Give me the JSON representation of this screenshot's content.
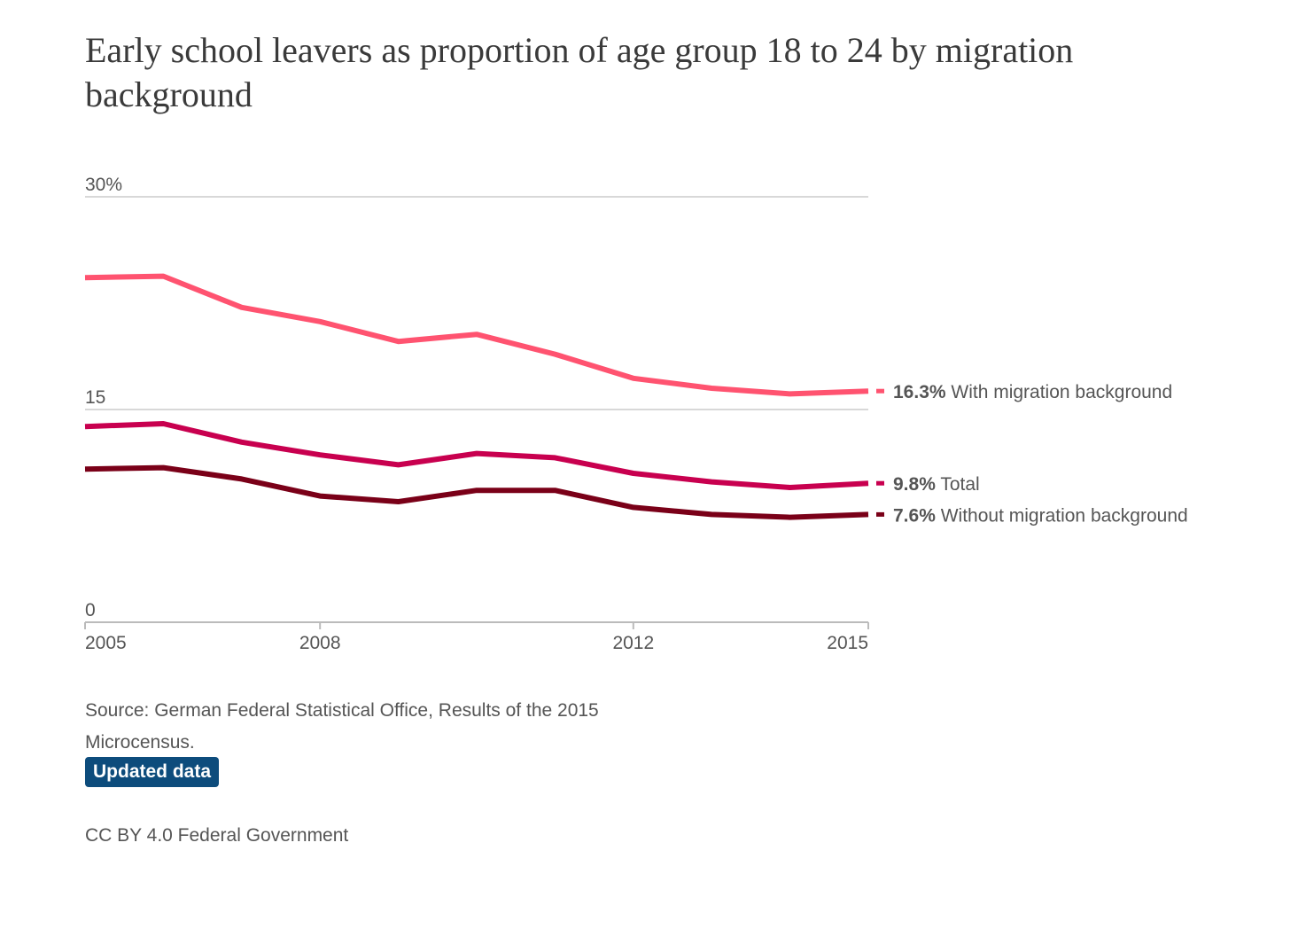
{
  "title": "Early school leavers as proportion of age group 18 to 24 by migration background",
  "source": "Source: German Federal Statistical Office, Results of the 2015 Microcensus.",
  "updated_label": "Updated data",
  "license": "CC BY 4.0 Federal Government",
  "colors": {
    "grid": "#cccccc",
    "axis": "#bbbbbb",
    "with_migration": "#ff5370",
    "total": "#c8004f",
    "without_migration": "#7a0018",
    "button": "#0d4c7c"
  },
  "chart_data": {
    "type": "line",
    "title": "Early school leavers as proportion of age group 18 to 24 by migration background",
    "xlabel": "",
    "ylabel": "",
    "x": [
      2005,
      2006,
      2007,
      2008,
      2009,
      2010,
      2011,
      2012,
      2013,
      2014,
      2015
    ],
    "xlim": [
      2005,
      2015
    ],
    "ylim": [
      0,
      30
    ],
    "y_ticks": [
      {
        "value": 0,
        "label": "0"
      },
      {
        "value": 15,
        "label": "15"
      },
      {
        "value": 30,
        "label": "30%"
      }
    ],
    "x_ticks": [
      {
        "value": 2005,
        "label": "2005"
      },
      {
        "value": 2008,
        "label": "2008"
      },
      {
        "value": 2012,
        "label": "2012"
      },
      {
        "value": 2015,
        "label": "2015"
      }
    ],
    "grid": true,
    "legend": "line-end labels",
    "series": [
      {
        "name": "With migration background",
        "end_label": "16.3%",
        "color": "#ff5370",
        "values": [
          24.3,
          24.4,
          22.2,
          21.2,
          19.8,
          20.3,
          18.9,
          17.2,
          16.5,
          16.1,
          16.3
        ]
      },
      {
        "name": "Total",
        "end_label": "9.8%",
        "color": "#c8004f",
        "values": [
          13.8,
          14.0,
          12.7,
          11.8,
          11.1,
          11.9,
          11.6,
          10.5,
          9.9,
          9.5,
          9.8
        ]
      },
      {
        "name": "Without migration background",
        "end_label": "7.6%",
        "color": "#7a0018",
        "values": [
          10.8,
          10.9,
          10.1,
          8.9,
          8.5,
          9.3,
          9.3,
          8.1,
          7.6,
          7.4,
          7.6
        ]
      }
    ]
  }
}
